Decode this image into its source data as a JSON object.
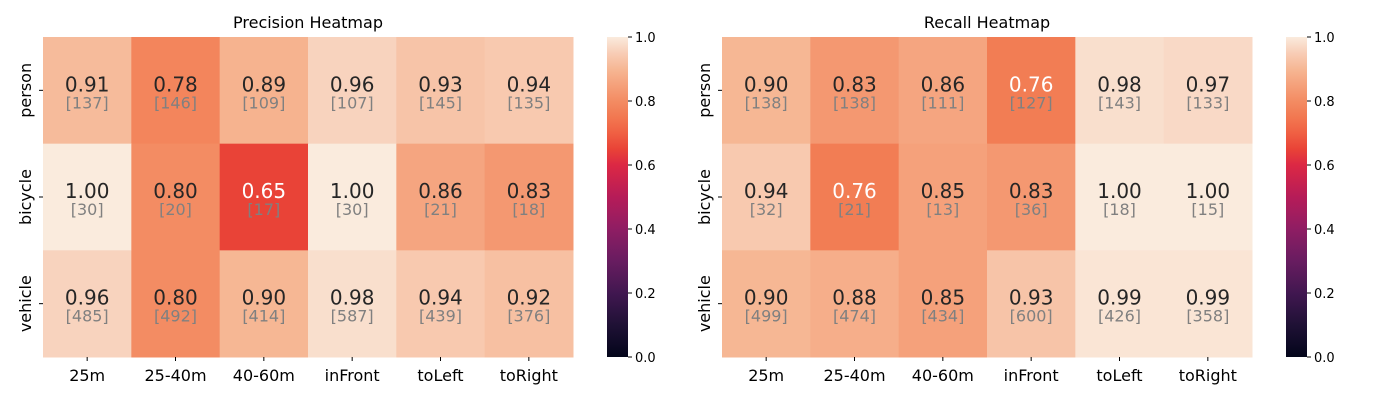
{
  "chart_data": [
    {
      "type": "heatmap",
      "title": "Precision Heatmap",
      "xlabel": "",
      "ylabel": "",
      "x_categories": [
        "25m",
        "25-40m",
        "40-60m",
        "inFront",
        "toLeft",
        "toRight"
      ],
      "y_categories": [
        "person",
        "bicycle",
        "vehicle"
      ],
      "values": [
        [
          0.91,
          0.78,
          0.89,
          0.96,
          0.93,
          0.94
        ],
        [
          1.0,
          0.8,
          0.65,
          1.0,
          0.86,
          0.83
        ],
        [
          0.96,
          0.8,
          0.9,
          0.98,
          0.94,
          0.92
        ]
      ],
      "counts": [
        [
          137,
          146,
          109,
          107,
          145,
          135
        ],
        [
          30,
          20,
          17,
          30,
          21,
          18
        ],
        [
          485,
          492,
          414,
          587,
          439,
          376
        ]
      ],
      "colorbar": {
        "range": [
          0.0,
          1.0
        ],
        "ticks": [
          "0.0",
          "0.2",
          "0.4",
          "0.6",
          "0.8",
          "1.0"
        ],
        "colormap": "rocket"
      },
      "grid": false
    },
    {
      "type": "heatmap",
      "title": "Recall Heatmap",
      "xlabel": "",
      "ylabel": "",
      "x_categories": [
        "25m",
        "25-40m",
        "40-60m",
        "inFront",
        "toLeft",
        "toRight"
      ],
      "y_categories": [
        "person",
        "bicycle",
        "vehicle"
      ],
      "values": [
        [
          0.9,
          0.83,
          0.86,
          0.76,
          0.98,
          0.97
        ],
        [
          0.94,
          0.76,
          0.85,
          0.83,
          1.0,
          1.0
        ],
        [
          0.9,
          0.88,
          0.85,
          0.93,
          0.99,
          0.99
        ]
      ],
      "counts": [
        [
          138,
          138,
          111,
          127,
          143,
          133
        ],
        [
          32,
          21,
          13,
          36,
          18,
          15
        ],
        [
          499,
          474,
          434,
          600,
          426,
          358
        ]
      ],
      "colorbar": {
        "range": [
          0.0,
          1.0
        ],
        "ticks": [
          "0.0",
          "0.2",
          "0.4",
          "0.6",
          "0.8",
          "1.0"
        ],
        "colormap": "rocket"
      },
      "grid": false
    }
  ]
}
